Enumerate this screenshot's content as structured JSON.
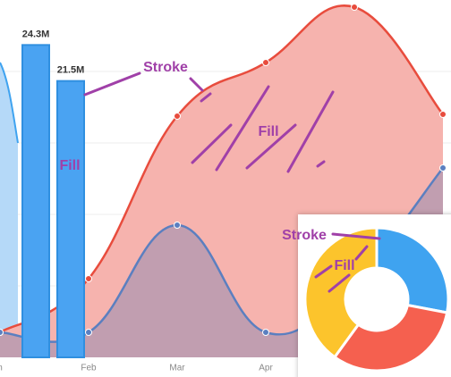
{
  "chart_data": [
    {
      "type": "area",
      "categories": [
        "n",
        "Feb",
        "Mar",
        "Apr",
        null,
        null
      ],
      "ylim": [
        0,
        100
      ],
      "series": [
        {
          "name": null,
          "color": "#e84c3d",
          "fill": "#f6b3ae",
          "values": [
            7,
            22,
            67.5,
            82.5,
            98,
            68
          ]
        },
        {
          "name": null,
          "color": "#5b7fc0",
          "fill": "#b79ab0",
          "values": [
            7,
            7,
            37,
            7,
            22,
            53
          ]
        }
      ]
    },
    {
      "type": "bar",
      "values": [
        24.3,
        21.5
      ],
      "value_labels": [
        "24.3M",
        "21.5M"
      ],
      "color": "#4aa3f2",
      "ylim": [
        0,
        27.8
      ]
    },
    {
      "type": "donut",
      "values": [
        28,
        32,
        40
      ],
      "colors": [
        "#3fa3f0",
        "#f5604f",
        "#fcc42c"
      ]
    }
  ],
  "annotations": [
    "Stroke",
    "Fill",
    "Fill",
    "Stroke",
    "Fill"
  ]
}
